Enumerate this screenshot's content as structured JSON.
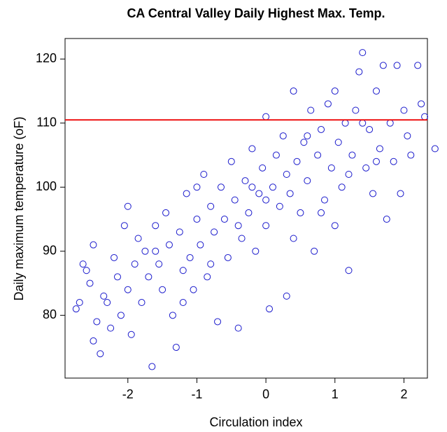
{
  "chart_data": {
    "type": "scatter",
    "title": "CA Central Valley Daily Highest Max. Temp.",
    "x_label": "Circulation index",
    "y_label": "Daily maximum temperature (oF)",
    "color": "#1a1acc",
    "hline": {
      "value": 110.5,
      "color": "#ee1111"
    },
    "xlim": [
      -2.91,
      2.34
    ],
    "ylim": [
      70.2,
      123.2
    ],
    "xticks": [
      -2,
      -1,
      0,
      1,
      2
    ],
    "yticks": [
      80,
      90,
      100,
      110,
      120
    ],
    "grid": false,
    "x": [
      -2.75,
      -2.7,
      -2.65,
      -2.6,
      -2.55,
      -2.5,
      -2.5,
      -2.45,
      -2.4,
      -2.35,
      -2.3,
      -2.25,
      -2.2,
      -2.15,
      -2.1,
      -2.05,
      -2.0,
      -2.0,
      -1.95,
      -1.9,
      -1.85,
      -1.8,
      -1.75,
      -1.7,
      -1.65,
      -1.6,
      -1.55,
      -1.5,
      -1.45,
      -1.4,
      -1.35,
      -1.3,
      -1.25,
      -1.2,
      -1.15,
      -1.1,
      -1.05,
      -1.0,
      -0.95,
      -0.9,
      -0.85,
      -0.8,
      -0.75,
      -0.7,
      -0.65,
      -0.6,
      -0.55,
      -0.5,
      -0.45,
      -0.4,
      -0.35,
      -0.3,
      -0.25,
      -0.2,
      -0.15,
      -0.1,
      -0.05,
      0.0,
      0.0,
      0.05,
      0.1,
      0.15,
      0.2,
      0.25,
      0.3,
      0.3,
      0.35,
      0.4,
      0.45,
      0.5,
      0.55,
      0.6,
      0.65,
      0.7,
      0.75,
      0.8,
      0.85,
      0.9,
      0.95,
      1.0,
      1.0,
      1.05,
      1.1,
      1.15,
      1.2,
      1.25,
      1.3,
      1.35,
      1.4,
      1.45,
      1.5,
      1.55,
      1.6,
      1.65,
      1.7,
      1.75,
      1.8,
      1.85,
      1.9,
      1.95,
      2.0,
      2.05,
      2.1,
      2.2,
      2.25,
      2.3,
      2.45,
      -1.6,
      -1.2,
      -0.8,
      -0.4,
      0.0,
      0.4,
      0.8,
      1.2,
      1.6,
      -1.0,
      -0.2,
      0.6,
      1.4
    ],
    "y": [
      81,
      82,
      88,
      87,
      85,
      91,
      76,
      79,
      74,
      83,
      82,
      78,
      89,
      86,
      80,
      94,
      97,
      84,
      77,
      88,
      92,
      82,
      90,
      86,
      72,
      94,
      88,
      84,
      96,
      91,
      80,
      75,
      93,
      87,
      99,
      89,
      84,
      95,
      91,
      102,
      86,
      97,
      93,
      79,
      100,
      95,
      89,
      104,
      98,
      78,
      92,
      101,
      96,
      106,
      90,
      99,
      103,
      94,
      111,
      81,
      100,
      105,
      97,
      108,
      83,
      102,
      99,
      115,
      104,
      96,
      107,
      101,
      112,
      90,
      105,
      109,
      98,
      113,
      103,
      115,
      94,
      107,
      100,
      110,
      87,
      105,
      112,
      118,
      121,
      103,
      109,
      99,
      115,
      106,
      119,
      95,
      110,
      104,
      119,
      99,
      112,
      108,
      105,
      119,
      113,
      111,
      106,
      90,
      82,
      88,
      94,
      98,
      92,
      96,
      102,
      104,
      100,
      100,
      108,
      110
    ]
  }
}
